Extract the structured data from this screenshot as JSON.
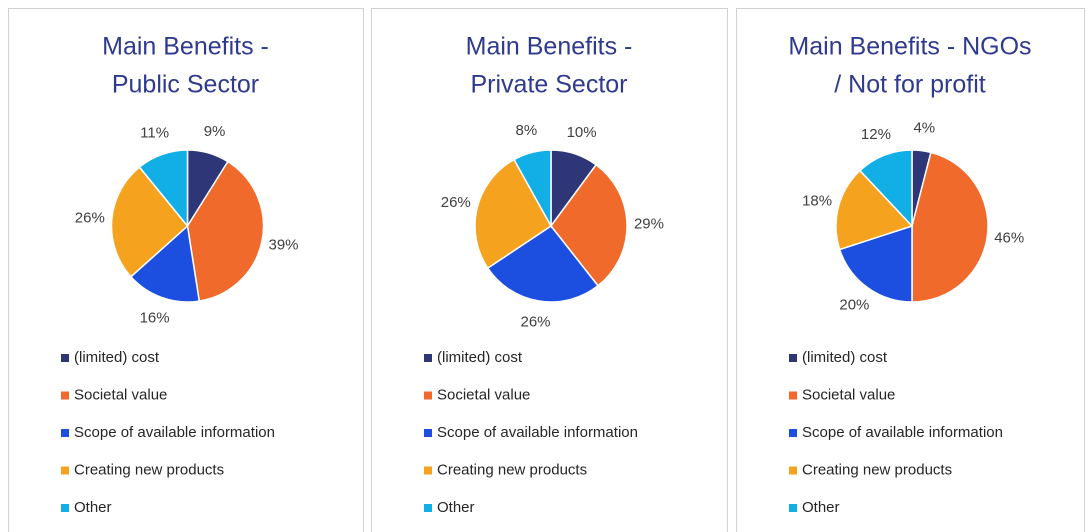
{
  "chart_data": [
    {
      "type": "pie",
      "title": [
        "Main Benefits -",
        "Public Sector"
      ],
      "categories": [
        "(limited) cost",
        "Societal value",
        "Scope of available information",
        "Creating new products",
        "Other"
      ],
      "values": [
        9,
        39,
        16,
        26,
        11
      ],
      "value_labels": [
        "9%",
        "39%",
        "16%",
        "26%",
        "11%"
      ],
      "colors": [
        "#2e3678",
        "#f06a2c",
        "#1c4fe0",
        "#f5a21f",
        "#12aee6"
      ],
      "legend": "bottom"
    },
    {
      "type": "pie",
      "title": [
        "Main Benefits -",
        "Private Sector"
      ],
      "categories": [
        "(limited) cost",
        "Societal value",
        "Scope of available information",
        "Creating new products",
        "Other"
      ],
      "values": [
        10,
        29,
        26,
        26,
        8
      ],
      "value_labels": [
        "10%",
        "29%",
        "26%",
        "26%",
        "8%"
      ],
      "colors": [
        "#2e3678",
        "#f06a2c",
        "#1c4fe0",
        "#f5a21f",
        "#12aee6"
      ],
      "legend": "bottom"
    },
    {
      "type": "pie",
      "title": [
        "Main Benefits - NGOs",
        "/ Not for profit"
      ],
      "categories": [
        "(limited) cost",
        "Societal value",
        "Scope of available information",
        "Creating new products",
        "Other"
      ],
      "values": [
        4,
        46,
        20,
        18,
        12
      ],
      "value_labels": [
        "4%",
        "46%",
        "20%",
        "18%",
        "12%"
      ],
      "colors": [
        "#2e3678",
        "#f06a2c",
        "#1c4fe0",
        "#f5a21f",
        "#12aee6"
      ],
      "legend": "bottom"
    }
  ]
}
